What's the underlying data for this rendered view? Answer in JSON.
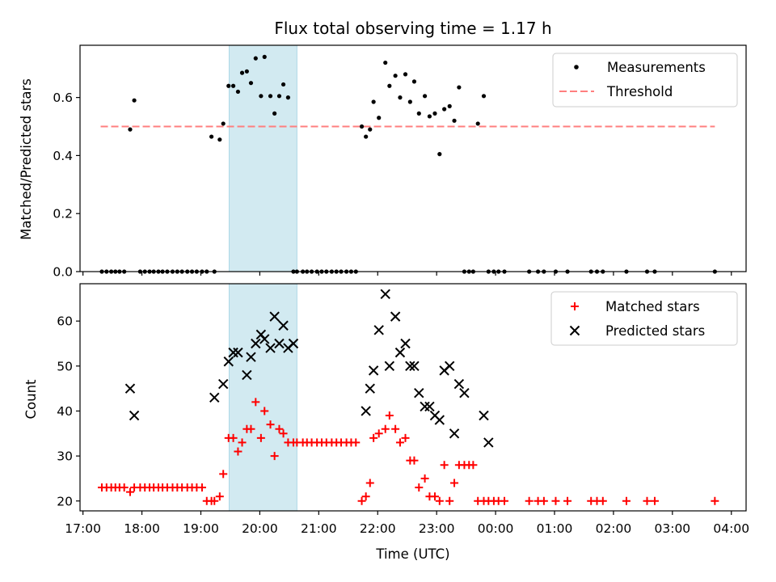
{
  "chart_data": [
    {
      "type": "scatter",
      "title": "Flux total observing time = 1.17 h",
      "ylabel": "Matched/Predicted stars",
      "xlabel": "",
      "xlim": [
        16.95,
        28.25
      ],
      "ylim": [
        0,
        0.78
      ],
      "yticks": [
        0.0,
        0.2,
        0.4,
        0.6
      ],
      "ytick_labels": [
        "0.0",
        "0.2",
        "0.4",
        "0.6"
      ],
      "xticks": [
        17,
        18,
        19,
        20,
        21,
        22,
        23,
        24,
        25,
        26,
        27,
        28
      ],
      "shaded_interval": [
        19.48,
        20.63
      ],
      "shade_color": "#add8e6",
      "legend": {
        "placement": "upper right",
        "entries": [
          "Measurements",
          "Threshold"
        ]
      },
      "series": [
        {
          "name": "Measurements",
          "marker": "dot",
          "color": "#000000",
          "x": [
            17.32,
            17.4,
            17.48,
            17.55,
            17.62,
            17.7,
            17.8,
            17.87,
            17.97,
            18.05,
            18.13,
            18.2,
            18.28,
            18.35,
            18.43,
            18.52,
            18.6,
            18.68,
            18.77,
            18.85,
            18.93,
            19.02,
            19.1,
            19.18,
            19.23,
            19.32,
            19.38,
            19.47,
            19.55,
            19.63,
            19.7,
            19.78,
            19.85,
            19.93,
            20.02,
            20.08,
            20.18,
            20.25,
            20.33,
            20.4,
            20.48,
            20.57,
            20.63,
            20.73,
            20.8,
            20.88,
            20.97,
            21.05,
            21.13,
            21.22,
            21.3,
            21.38,
            21.47,
            21.55,
            21.63,
            21.73,
            21.8,
            21.87,
            21.93,
            22.02,
            22.13,
            22.2,
            22.3,
            22.38,
            22.47,
            22.55,
            22.62,
            22.7,
            22.8,
            22.88,
            22.97,
            23.05,
            23.13,
            23.22,
            23.3,
            23.38,
            23.47,
            23.55,
            23.62,
            23.7,
            23.8,
            23.88,
            23.97,
            24.05,
            24.15,
            24.57,
            24.72,
            24.82,
            25.02,
            25.22,
            25.62,
            25.72,
            25.82,
            26.22,
            26.57,
            26.7,
            27.72
          ],
          "y": [
            0,
            0,
            0,
            0,
            0,
            0,
            0.49,
            0.59,
            0,
            0,
            0,
            0,
            0,
            0,
            0,
            0,
            0,
            0,
            0,
            0,
            0,
            0,
            0,
            0.465,
            0,
            0.455,
            0.51,
            0.64,
            0.64,
            0.62,
            0.685,
            0.69,
            0.65,
            0.735,
            0.605,
            0.74,
            0.605,
            0.545,
            0.605,
            0.645,
            0.6,
            0,
            0,
            0,
            0,
            0,
            0,
            0,
            0,
            0,
            0,
            0,
            0,
            0,
            0,
            0.5,
            0.465,
            0.49,
            0.585,
            0.53,
            0.72,
            0.64,
            0.675,
            0.6,
            0.68,
            0.585,
            0.655,
            0.545,
            0.605,
            0.535,
            0.545,
            0.405,
            0.56,
            0.57,
            0.52,
            0.635,
            0,
            0,
            0,
            0.51,
            0.605,
            0,
            0,
            0,
            0,
            0,
            0,
            0,
            0,
            0,
            0,
            0,
            0,
            0,
            0,
            0,
            0
          ]
        },
        {
          "name": "Threshold",
          "style": "dashed",
          "color": "#ff7f7f",
          "x": [
            17.3,
            27.72
          ],
          "y": [
            0.5,
            0.5
          ]
        }
      ]
    },
    {
      "type": "scatter",
      "title": "",
      "ylabel": "Count",
      "xlabel": "Time (UTC)",
      "xlim": [
        16.95,
        28.25
      ],
      "ylim": [
        17.8,
        68.3
      ],
      "yticks": [
        20,
        30,
        40,
        50,
        60
      ],
      "ytick_labels": [
        "20",
        "30",
        "40",
        "50",
        "60"
      ],
      "xticks": [
        17,
        18,
        19,
        20,
        21,
        22,
        23,
        24,
        25,
        26,
        27,
        28
      ],
      "xtick_labels": [
        "17:00",
        "18:00",
        "19:00",
        "20:00",
        "21:00",
        "22:00",
        "23:00",
        "00:00",
        "01:00",
        "02:00",
        "03:00",
        "04:00"
      ],
      "shaded_interval": [
        19.48,
        20.63
      ],
      "shade_color": "#add8e6",
      "legend": {
        "placement": "upper right",
        "entries": [
          "Matched stars",
          "Predicted stars"
        ]
      },
      "series": [
        {
          "name": "Matched stars",
          "marker": "plus",
          "color": "#ff0000",
          "x": [
            17.32,
            17.4,
            17.48,
            17.55,
            17.62,
            17.7,
            17.8,
            17.87,
            17.97,
            18.05,
            18.13,
            18.2,
            18.28,
            18.35,
            18.43,
            18.52,
            18.6,
            18.68,
            18.77,
            18.85,
            18.93,
            19.02,
            19.1,
            19.18,
            19.23,
            19.32,
            19.38,
            19.47,
            19.55,
            19.63,
            19.7,
            19.78,
            19.85,
            19.93,
            20.02,
            20.08,
            20.18,
            20.25,
            20.33,
            20.4,
            20.48,
            20.57,
            20.63,
            20.73,
            20.8,
            20.88,
            20.97,
            21.05,
            21.13,
            21.22,
            21.3,
            21.38,
            21.47,
            21.55,
            21.63,
            21.73,
            21.8,
            21.87,
            21.93,
            22.02,
            22.13,
            22.2,
            22.3,
            22.38,
            22.47,
            22.55,
            22.62,
            22.7,
            22.8,
            22.88,
            22.97,
            23.05,
            23.13,
            23.22,
            23.3,
            23.38,
            23.47,
            23.55,
            23.62,
            23.7,
            23.8,
            23.88,
            23.97,
            24.05,
            24.15,
            24.57,
            24.72,
            24.82,
            25.02,
            25.22,
            25.62,
            25.72,
            25.82,
            26.22,
            26.57,
            26.7,
            27.72
          ],
          "y": [
            23,
            23,
            23,
            23,
            23,
            23,
            22,
            23,
            23,
            23,
            23,
            23,
            23,
            23,
            23,
            23,
            23,
            23,
            23,
            23,
            23,
            23,
            20,
            20,
            20,
            21,
            26,
            34,
            34,
            31,
            33,
            36,
            36,
            42,
            34,
            40,
            37,
            30,
            36,
            35,
            33,
            33,
            33,
            33,
            33,
            33,
            33,
            33,
            33,
            33,
            33,
            33,
            33,
            33,
            33,
            20,
            21,
            24,
            34,
            35,
            36,
            39,
            36,
            33,
            34,
            29,
            29,
            23,
            25,
            21,
            21,
            20,
            28,
            20,
            24,
            28,
            28,
            28,
            28,
            20,
            20,
            20,
            20,
            20,
            20,
            20,
            20,
            20,
            20,
            20,
            20,
            20,
            20,
            20,
            20,
            20,
            20
          ]
        },
        {
          "name": "Predicted stars",
          "marker": "x",
          "color": "#000000",
          "x": [
            17.8,
            17.87,
            19.23,
            19.38,
            19.47,
            19.55,
            19.63,
            19.78,
            19.85,
            19.93,
            20.02,
            20.08,
            20.18,
            20.25,
            20.33,
            20.4,
            20.48,
            20.57,
            21.8,
            21.87,
            21.93,
            22.02,
            22.13,
            22.2,
            22.3,
            22.38,
            22.47,
            22.55,
            22.62,
            22.7,
            22.8,
            22.88,
            22.97,
            23.05,
            23.13,
            23.22,
            23.3,
            23.38,
            23.47,
            23.8,
            23.88
          ],
          "y": [
            45,
            39,
            43,
            46,
            51,
            53,
            53,
            48,
            52,
            55,
            57,
            56,
            54,
            61,
            55,
            59,
            54,
            55,
            40,
            45,
            49,
            58,
            66,
            50,
            61,
            53,
            55,
            50,
            50,
            44,
            41,
            41,
            39,
            38,
            49,
            50,
            35,
            46,
            44,
            39,
            33
          ]
        }
      ]
    }
  ]
}
